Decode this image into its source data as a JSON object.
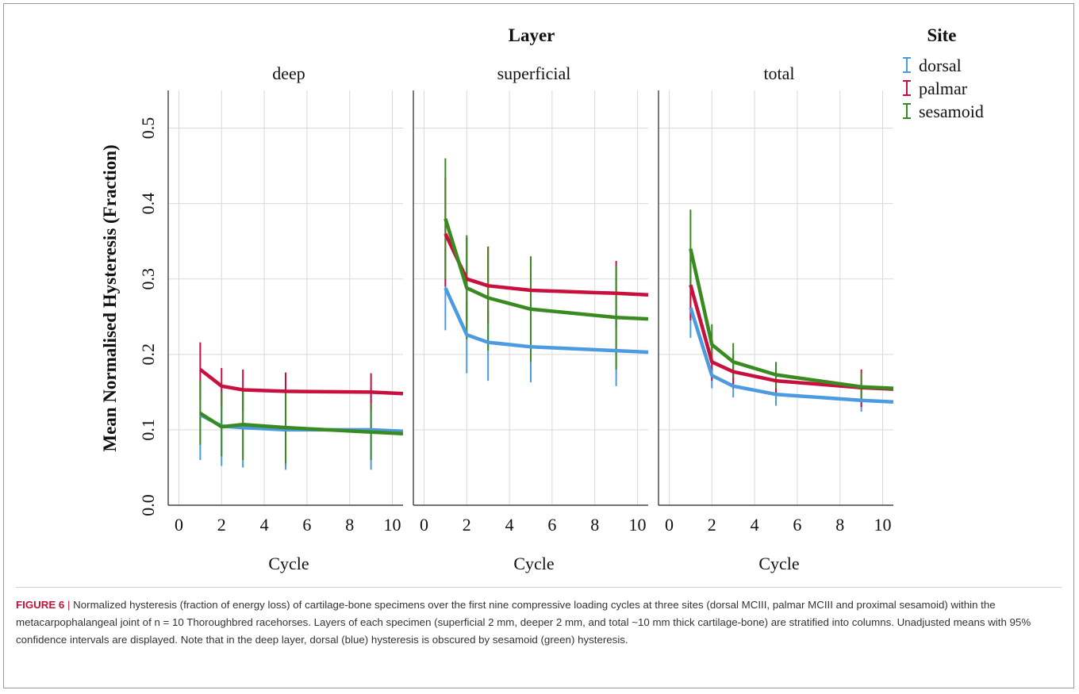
{
  "chart_data": {
    "type": "line",
    "column_header": "Layer",
    "legend_title": "Site",
    "legend_placement": "top-right",
    "ylabel": "Mean Normalised Hysteresis (Fraction)",
    "xlabel": "Cycle",
    "xlim": [
      -0.5,
      10.5
    ],
    "ylim": [
      0.0,
      0.55
    ],
    "xticks": [
      0,
      2,
      4,
      6,
      8,
      10
    ],
    "yticks": [
      0.0,
      0.1,
      0.2,
      0.3,
      0.4,
      0.5
    ],
    "ytick_labels": [
      "0.0",
      "0.1",
      "0.2",
      "0.3",
      "0.4",
      "0.5"
    ],
    "grid": true,
    "x": [
      1,
      2,
      3,
      5,
      9
    ],
    "series_meta": [
      {
        "name": "dorsal",
        "color": "#4c9be0"
      },
      {
        "name": "palmar",
        "color": "#c8103e"
      },
      {
        "name": "sesamoid",
        "color": "#3a8a22"
      }
    ],
    "panels": [
      {
        "title": "deep",
        "series": [
          {
            "name": "dorsal",
            "values": [
              0.12,
              0.105,
              0.103,
              0.1,
              0.1
            ],
            "lower": [
              0.06,
              0.052,
              0.05,
              0.047,
              0.047
            ],
            "upper": [
              0.165,
              0.155,
              0.155,
              0.155,
              0.155
            ]
          },
          {
            "name": "palmar",
            "values": [
              0.18,
              0.158,
              0.153,
              0.151,
              0.15
            ],
            "lower": [
              0.14,
              0.13,
              0.125,
              0.125,
              0.125
            ],
            "upper": [
              0.216,
              0.182,
              0.18,
              0.176,
              0.175
            ]
          },
          {
            "name": "sesamoid",
            "values": [
              0.122,
              0.104,
              0.107,
              0.103,
              0.097
            ],
            "lower": [
              0.08,
              0.065,
              0.06,
              0.055,
              0.06
            ],
            "upper": [
              0.165,
              0.15,
              0.155,
              0.15,
              0.135
            ]
          }
        ]
      },
      {
        "title": "superficial",
        "series": [
          {
            "name": "dorsal",
            "values": [
              0.288,
              0.226,
              0.216,
              0.21,
              0.205
            ],
            "lower": [
              0.232,
              0.175,
              0.165,
              0.163,
              0.158
            ],
            "upper": [
              0.34,
              0.27,
              0.26,
              0.255,
              0.25
            ]
          },
          {
            "name": "palmar",
            "values": [
              0.36,
              0.3,
              0.291,
              0.285,
              0.281
            ],
            "lower": [
              0.29,
              0.245,
              0.24,
              0.235,
              0.235
            ],
            "upper": [
              0.435,
              0.355,
              0.343,
              0.33,
              0.324
            ]
          },
          {
            "name": "sesamoid",
            "values": [
              0.38,
              0.288,
              0.275,
              0.26,
              0.249
            ],
            "lower": [
              0.3,
              0.22,
              0.205,
              0.19,
              0.18
            ],
            "upper": [
              0.46,
              0.358,
              0.342,
              0.33,
              0.318
            ]
          }
        ]
      },
      {
        "title": "total",
        "series": [
          {
            "name": "dorsal",
            "values": [
              0.262,
              0.172,
              0.158,
              0.147,
              0.139
            ],
            "lower": [
              0.222,
              0.155,
              0.143,
              0.132,
              0.124
            ],
            "upper": [
              0.295,
              0.19,
              0.175,
              0.163,
              0.155
            ]
          },
          {
            "name": "palmar",
            "values": [
              0.292,
              0.19,
              0.177,
              0.165,
              0.156
            ],
            "lower": [
              0.245,
              0.165,
              0.155,
              0.145,
              0.13
            ],
            "upper": [
              0.34,
              0.215,
              0.2,
              0.185,
              0.18
            ]
          },
          {
            "name": "sesamoid",
            "values": [
              0.34,
              0.213,
              0.19,
              0.173,
              0.157
            ],
            "lower": [
              0.29,
              0.19,
              0.17,
              0.155,
              0.14
            ],
            "upper": [
              0.392,
              0.24,
              0.215,
              0.19,
              0.175
            ]
          }
        ]
      }
    ]
  },
  "caption": {
    "label": "FIGURE 6",
    "separator": " | ",
    "text": "Normalized hysteresis (fraction of energy loss) of cartilage-bone specimens over the first nine compressive loading cycles at three sites (dorsal MCIII, palmar MCIII and proximal sesamoid) within the metacarpophalangeal joint of n = 10 Thoroughbred racehorses. Layers of each specimen (superficial 2 mm, deeper 2 mm, and total ~10 mm thick cartilage-bone) are stratified into columns. Unadjusted means with 95% confidence intervals are displayed. Note that in the deep layer, dorsal (blue) hysteresis is obscured by sesamoid (green) hysteresis."
  }
}
